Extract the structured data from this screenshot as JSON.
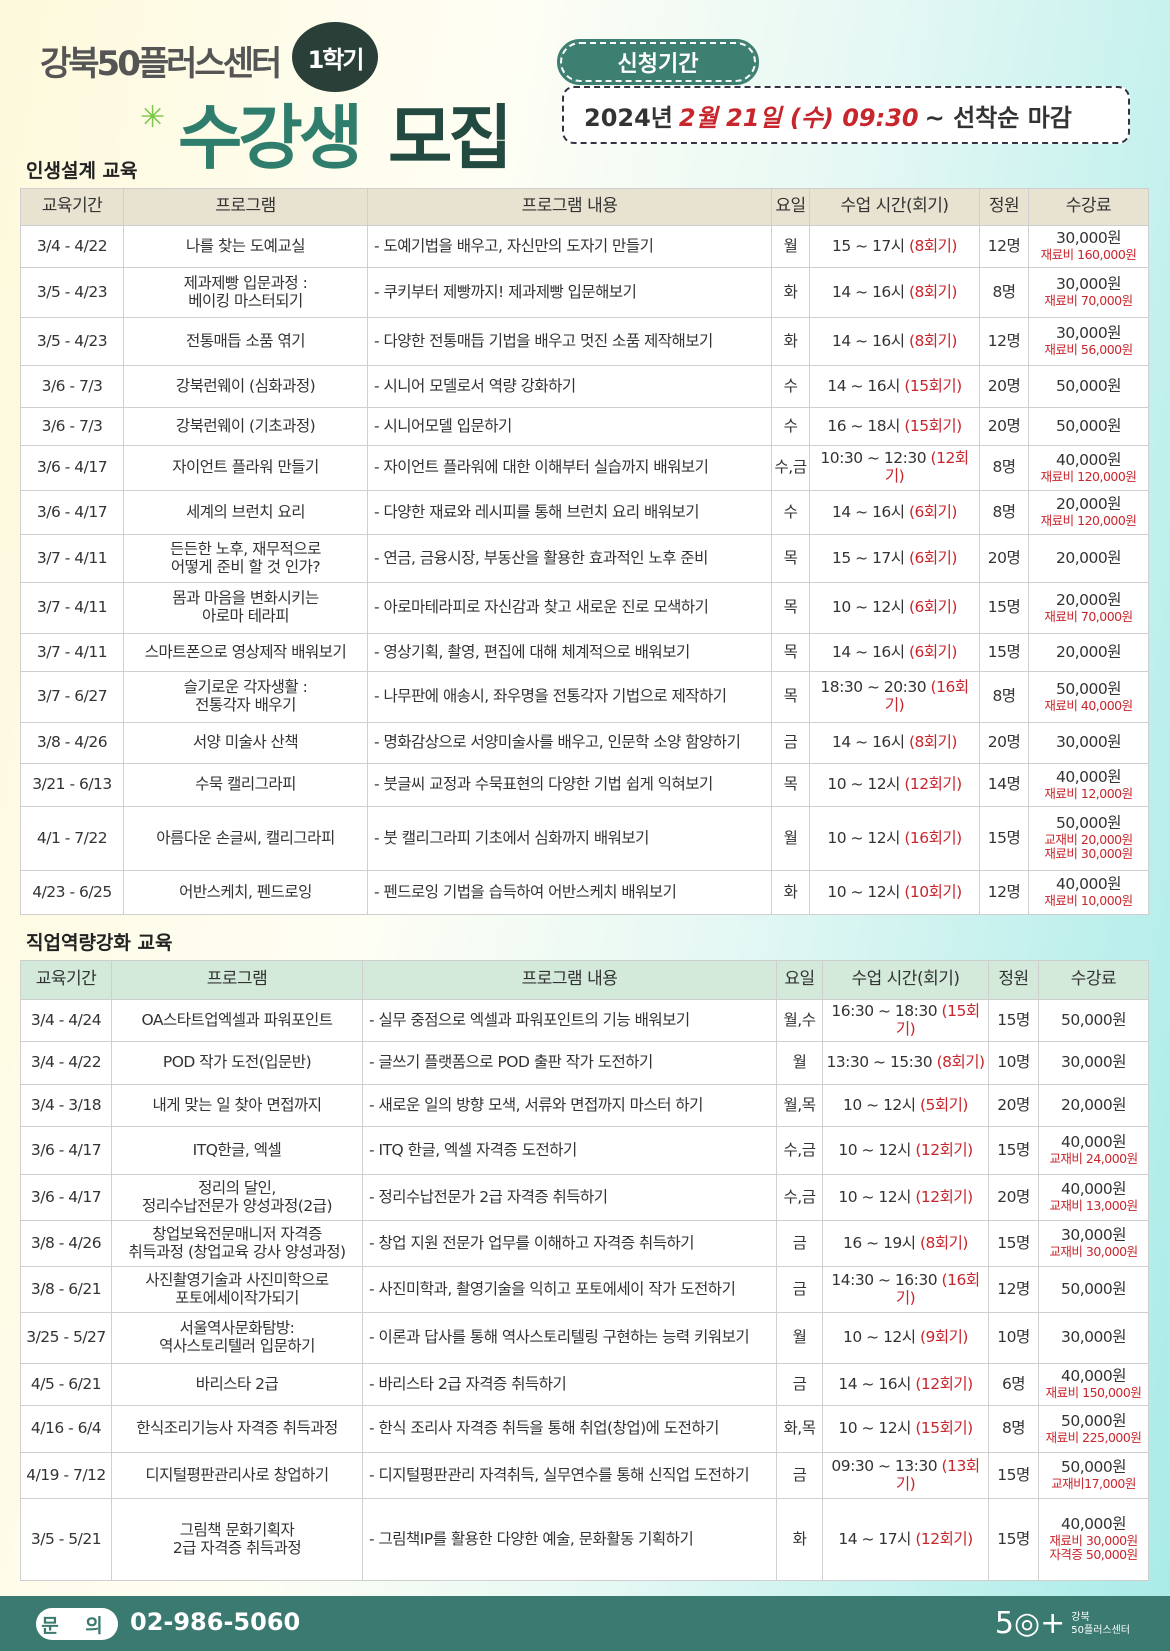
{
  "header": {
    "brand": "강북50플러스센터",
    "term_badge": "1학기",
    "title_part1": "수강생",
    "title_part2": "모집",
    "period_label": "신청기간",
    "period_year": "2024년",
    "period_date": "2월 21일 (수) 09:30",
    "period_suffix": "~ 선착순 마감"
  },
  "colors": {
    "accent": "#3b7a70",
    "red": "#c8262d",
    "header1": "#e8e2d0",
    "header2": "#d3eadb"
  },
  "columns": [
    "교육기간",
    "프로그램",
    "프로그램 내용",
    "요일",
    "수업 시간(회기)",
    "정원",
    "수강료"
  ],
  "section1": {
    "title": "인생설계 교육",
    "rows": [
      [
        "3/4 - 4/22",
        "나를 찾는 도예교실",
        "- 도예기법을 배우고, 자신만의 도자기 만들기",
        "월",
        "15 ~ 17시",
        "(8회기)",
        "12명",
        "30,000원",
        [
          "재료비 160,000원"
        ]
      ],
      [
        "3/5 - 4/23",
        "제과제빵 입문과정 :\n베이킹 마스터되기",
        "- 쿠키부터 제빵까지! 제과제빵 입문해보기",
        "화",
        "14 ~ 16시",
        "(8회기)",
        "8명",
        "30,000원",
        [
          "재료비 70,000원"
        ]
      ],
      [
        "3/5 - 4/23",
        "전통매듭 소품 엮기",
        "- 다양한 전통매듭 기법을 배우고 멋진 소품 제작해보기",
        "화",
        "14 ~ 16시",
        "(8회기)",
        "12명",
        "30,000원",
        [
          "재료비 56,000원"
        ]
      ],
      [
        "3/6 - 7/3",
        "강북런웨이 (심화과정)",
        "- 시니어 모델로서 역량 강화하기",
        "수",
        "14 ~ 16시",
        "(15회기)",
        "20명",
        "50,000원",
        []
      ],
      [
        "3/6 - 7/3",
        "강북런웨이 (기초과정)",
        "- 시니어모델 입문하기",
        "수",
        "16 ~ 18시",
        "(15회기)",
        "20명",
        "50,000원",
        []
      ],
      [
        "3/6 - 4/17",
        "자이언트 플라워 만들기",
        "- 자이언트 플라워에 대한 이해부터 실습까지 배워보기",
        "수,금",
        "10:30 ~ 12:30",
        "(12회기)",
        "8명",
        "40,000원",
        [
          "재료비 120,000원"
        ]
      ],
      [
        "3/6 - 4/17",
        "세계의 브런치 요리",
        "- 다양한 재료와 레시피를 통해 브런치 요리 배워보기",
        "수",
        "14 ~ 16시",
        "(6회기)",
        "8명",
        "20,000원",
        [
          "재료비 120,000원"
        ]
      ],
      [
        "3/7 - 4/11",
        "든든한 노후, 재무적으로\n어떻게 준비 할 것 인가?",
        "- 연금, 금융시장, 부동산을 활용한 효과적인 노후 준비",
        "목",
        "15 ~ 17시",
        "(6회기)",
        "20명",
        "20,000원",
        []
      ],
      [
        "3/7 - 4/11",
        "몸과 마음을 변화시키는\n아로마 테라피",
        "- 아로마테라피로 자신감과 찾고 새로운 진로 모색하기",
        "목",
        "10 ~ 12시",
        "(6회기)",
        "15명",
        "20,000원",
        [
          "재료비 70,000원"
        ]
      ],
      [
        "3/7 - 4/11",
        "스마트폰으로 영상제작 배워보기",
        "- 영상기획, 촬영, 편집에 대해 체계적으로 배워보기",
        "목",
        "14 ~ 16시",
        "(6회기)",
        "15명",
        "20,000원",
        []
      ],
      [
        "3/7 - 6/27",
        "슬기로운 각자생활 :\n전통각자 배우기",
        "- 나무판에 애송시, 좌우명을 전통각자 기법으로 제작하기",
        "목",
        "18:30 ~ 20:30",
        "(16회기)",
        "8명",
        "50,000원",
        [
          "재료비 40,000원"
        ]
      ],
      [
        "3/8 - 4/26",
        "서양 미술사 산책",
        "- 명화감상으로 서양미술사를 배우고, 인문학 소양 함양하기",
        "금",
        "14 ~ 16시",
        "(8회기)",
        "20명",
        "30,000원",
        []
      ],
      [
        "3/21 - 6/13",
        "수묵 캘리그라피",
        "- 붓글씨 교정과 수묵표현의 다양한 기법 쉽게 익혀보기",
        "목",
        "10 ~ 12시",
        "(12회기)",
        "14명",
        "40,000원",
        [
          "재료비 12,000원"
        ]
      ],
      [
        "4/1 - 7/22",
        "아름다운 손글씨, 캘리그라피",
        "- 붓 캘리그라피 기초에서 심화까지 배워보기",
        "월",
        "10 ~ 12시",
        "(16회기)",
        "15명",
        "50,000원",
        [
          "교재비 20,000원",
          "재료비 30,000원"
        ]
      ],
      [
        "4/23 - 6/25",
        "어반스케치, 펜드로잉",
        "- 펜드로잉 기법을 습득하여 어반스케치 배워보기",
        "화",
        "10 ~ 12시",
        "(10회기)",
        "12명",
        "40,000원",
        [
          "재료비 10,000원"
        ]
      ]
    ]
  },
  "section2": {
    "title": "직업역량강화 교육",
    "rows": [
      [
        "3/4 - 4/24",
        "OA스타트업엑셀과 파워포인트",
        "- 실무 중점으로 엑셀과 파워포인트의 기능 배워보기",
        "월,수",
        "16:30 ~ 18:30",
        "(15회기)",
        "15명",
        "50,000원",
        []
      ],
      [
        "3/4 - 4/22",
        "POD 작가 도전(입문반)",
        "- 글쓰기 플랫폼으로 POD 출판 작가 도전하기",
        "월",
        "13:30 ~ 15:30",
        "(8회기)",
        "10명",
        "30,000원",
        []
      ],
      [
        "3/4 - 3/18",
        "내게 맞는 일 찾아 면접까지",
        "- 새로운 일의 방향 모색, 서류와 면접까지 마스터 하기",
        "월,목",
        "10 ~ 12시",
        "(5회기)",
        "20명",
        "20,000원",
        []
      ],
      [
        "3/6 - 4/17",
        "ITQ한글, 엑셀",
        "- ITQ 한글, 엑셀 자격증 도전하기",
        "수,금",
        "10 ~ 12시",
        "(12회기)",
        "15명",
        "40,000원",
        [
          "교재비 24,000원"
        ]
      ],
      [
        "3/6 - 4/17",
        "정리의 달인,\n정리수납전문가 양성과정(2급)",
        "- 정리수납전문가 2급 자격증 취득하기",
        "수,금",
        "10 ~ 12시",
        "(12회기)",
        "20명",
        "40,000원",
        [
          "교재비 13,000원"
        ]
      ],
      [
        "3/8 - 4/26",
        "창업보육전문매니저 자격증\n취득과정 (창업교육 강사 양성과정)",
        "- 창업 지원 전문가 업무를 이해하고 자격증 취득하기",
        "금",
        "16 ~ 19시",
        "(8회기)",
        "15명",
        "30,000원",
        [
          "교재비 30,000원"
        ]
      ],
      [
        "3/8 - 6/21",
        "사진촬영기술과 사진미학으로\n포토에세이작가되기",
        "- 사진미학과, 촬영기술을 익히고 포토에세이 작가 도전하기",
        "금",
        "14:30 ~ 16:30",
        "(16회기)",
        "12명",
        "50,000원",
        []
      ],
      [
        "3/25 - 5/27",
        "서울역사문화탐방:\n역사스토리텔러 입문하기",
        "- 이론과 답사를 통해 역사스토리텔링 구현하는 능력 키워보기",
        "월",
        "10 ~ 12시",
        "(9회기)",
        "10명",
        "30,000원",
        []
      ],
      [
        "4/5 - 6/21",
        "바리스타 2급",
        "- 바리스타 2급 자격증 취득하기",
        "금",
        "14 ~ 16시",
        "(12회기)",
        "6명",
        "40,000원",
        [
          "재료비 150,000원"
        ]
      ],
      [
        "4/16 - 6/4",
        "한식조리기능사 자격증 취득과정",
        "- 한식 조리사 자격증 취득을 통해 취업(창업)에 도전하기",
        "화,목",
        "10 ~ 12시",
        "(15회기)",
        "8명",
        "50,000원",
        [
          "재료비 225,000원"
        ]
      ],
      [
        "4/19 - 7/12",
        "디지털평판관리사로 창업하기",
        "- 디지털평판관리 자격취득, 실무연수를 통해 신직업 도전하기",
        "금",
        "09:30 ~ 13:30",
        "(13회기)",
        "15명",
        "50,000원",
        [
          "교재비17,000원"
        ]
      ],
      [
        "3/5 - 5/21",
        "그림책 문화기획자\n2급 자격증 취득과정",
        "- 그림책IP를 활용한 다양한 예술, 문화활동 기획하기",
        "화",
        "14 ~ 17시",
        "(12회기)",
        "15명",
        "40,000원",
        [
          "재료비 30,000원",
          "자격증 50,000원"
        ]
      ]
    ]
  },
  "footer": {
    "inquiry_label": "문 의",
    "phone": "02-986-5060",
    "logo_mark": "5◎+",
    "logo_line1": "강북",
    "logo_line2": "50플러스센터"
  }
}
